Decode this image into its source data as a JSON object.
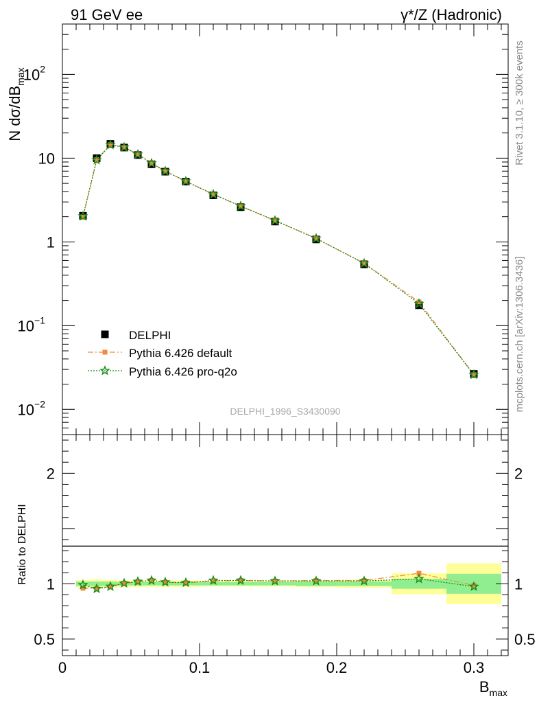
{
  "header": {
    "left_title": "91 GeV ee",
    "right_title": "γ*/Z (Hadronic)"
  },
  "side_text": {
    "rivet": "Rivet 3.1.10, ≥ 300k events",
    "mcplots": "mcplots.cern.ch [arXiv:1306.3436]"
  },
  "watermark": "DELPHI_1996_S3430090",
  "colors": {
    "data": "#000000",
    "default": "#f08a3c",
    "proq2o": "#1a8c1a",
    "band_inner": "#90ee90",
    "band_outer": "#ffff99"
  },
  "chart_data": [
    {
      "type": "scatter",
      "panel": "main",
      "yscale": "log",
      "ylabel": "N dσ/dB",
      "ylabel_sub": "max",
      "xlim": [
        0,
        0.325
      ],
      "ylim": [
        0.005,
        400
      ],
      "y_tick_labels": [
        {
          "base": "10",
          "exp": "2",
          "value": 100
        },
        {
          "base": "10",
          "exp": "",
          "value": 10
        },
        {
          "base": "1",
          "exp": "",
          "value": 1
        },
        {
          "base": "10",
          "exp": "−1",
          "value": 0.1
        },
        {
          "base": "10",
          "exp": "−2",
          "value": 0.01
        }
      ],
      "legend": {
        "placement": "lower-left",
        "entries": [
          "DELPHI",
          "Pythia 6.426 default",
          "Pythia 6.426 pro-q2o"
        ]
      },
      "x": [
        0.015,
        0.025,
        0.035,
        0.045,
        0.055,
        0.065,
        0.075,
        0.09,
        0.11,
        0.13,
        0.155,
        0.185,
        0.22,
        0.26,
        0.3
      ],
      "series": [
        {
          "name": "DELPHI",
          "values": [
            2.05,
            10.0,
            14.8,
            13.4,
            10.9,
            8.45,
            6.9,
            5.25,
            3.6,
            2.6,
            1.75,
            1.07,
            0.54,
            0.175,
            0.0265
          ]
        },
        {
          "name": "Pythia 6.426 default",
          "values": [
            1.97,
            9.6,
            14.5,
            13.5,
            11.1,
            8.7,
            7.0,
            5.3,
            3.7,
            2.67,
            1.8,
            1.1,
            0.555,
            0.192,
            0.026
          ]
        },
        {
          "name": "Pythia 6.426 pro-q2o",
          "values": [
            2.03,
            9.5,
            14.4,
            13.5,
            11.1,
            8.7,
            7.0,
            5.3,
            3.7,
            2.68,
            1.8,
            1.1,
            0.555,
            0.183,
            0.026
          ]
        }
      ]
    },
    {
      "type": "line",
      "panel": "ratio",
      "ylabel": "Ratio to DELPHI",
      "xlabel": "B",
      "xlabel_sub": "max",
      "xlim": [
        0,
        0.325
      ],
      "ylim": [
        0.35,
        2.35
      ],
      "y_ticks": [
        2,
        1,
        0.5
      ],
      "y_tick_labels": [
        "2",
        "1",
        "0.5"
      ],
      "x_ticks": [
        0,
        0.1,
        0.2,
        0.3
      ],
      "x_tick_labels": [
        "0",
        "0.1",
        "0.2",
        "0.3"
      ],
      "x": [
        0.015,
        0.025,
        0.035,
        0.045,
        0.055,
        0.065,
        0.075,
        0.09,
        0.11,
        0.13,
        0.155,
        0.185,
        0.22,
        0.26,
        0.3
      ],
      "bin_edges": [
        0.01,
        0.02,
        0.03,
        0.04,
        0.05,
        0.06,
        0.07,
        0.08,
        0.1,
        0.12,
        0.14,
        0.17,
        0.2,
        0.24,
        0.28,
        0.32
      ],
      "band_inner": [
        0.02,
        0.02,
        0.02,
        0.015,
        0.015,
        0.015,
        0.015,
        0.015,
        0.015,
        0.015,
        0.015,
        0.02,
        0.02,
        0.045,
        0.09
      ],
      "band_outer": [
        0.035,
        0.04,
        0.035,
        0.03,
        0.03,
        0.03,
        0.03,
        0.03,
        0.025,
        0.025,
        0.025,
        0.03,
        0.035,
        0.095,
        0.185
      ],
      "series": [
        {
          "name": "Pythia 6.426 default",
          "values": [
            0.96,
            0.96,
            0.975,
            1.005,
            1.02,
            1.03,
            1.015,
            1.01,
            1.025,
            1.03,
            1.025,
            1.03,
            1.03,
            1.095,
            0.985
          ]
        },
        {
          "name": "Pythia 6.426 pro-q2o",
          "values": [
            0.99,
            0.955,
            0.975,
            1.005,
            1.02,
            1.03,
            1.015,
            1.01,
            1.03,
            1.03,
            1.025,
            1.025,
            1.025,
            1.045,
            0.975
          ]
        }
      ]
    }
  ]
}
